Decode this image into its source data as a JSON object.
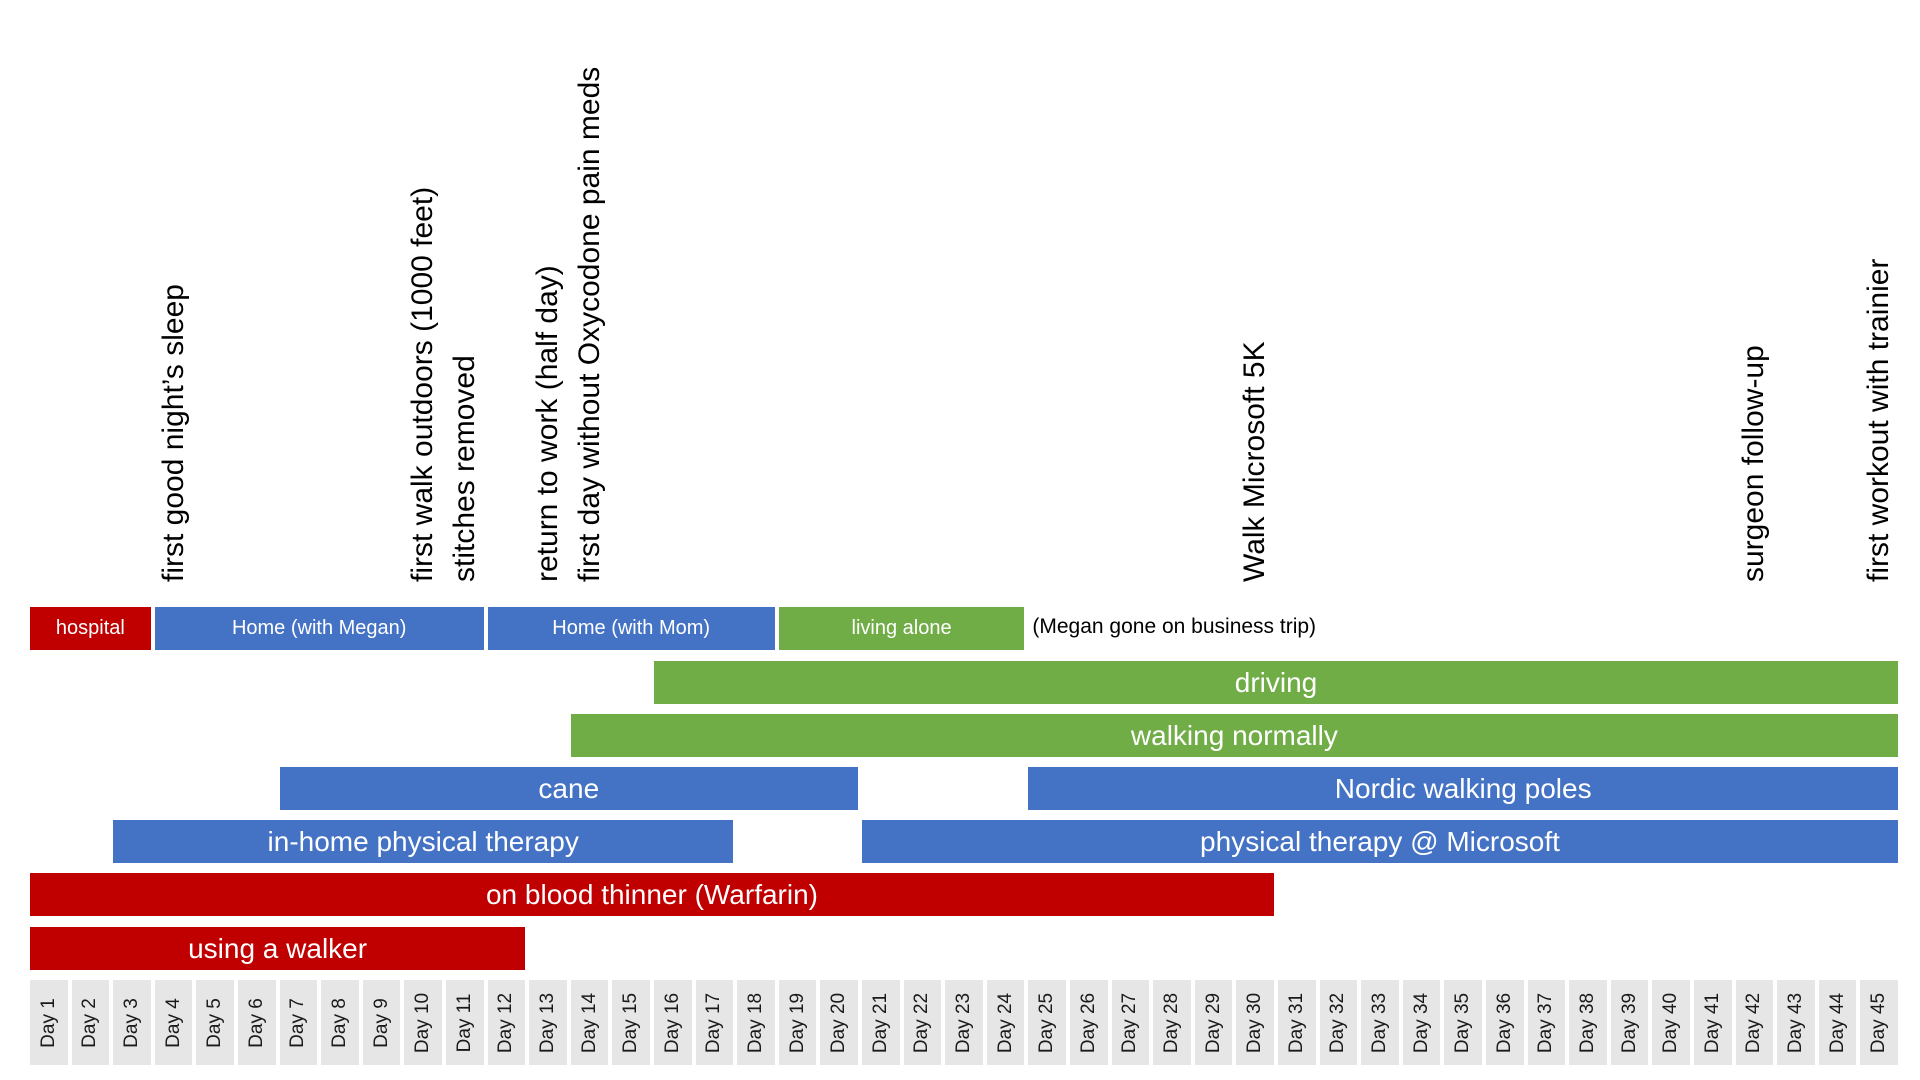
{
  "colors": {
    "red": "#c00000",
    "blue": "#4472c4",
    "green": "#70ad47",
    "day_cell": "#e7e6e6"
  },
  "days": [
    "Day 1",
    "Day 2",
    "Day 3",
    "Day 4",
    "Day 5",
    "Day 6",
    "Day 7",
    "Day 8",
    "Day 9",
    "Day 10",
    "Day 11",
    "Day 12",
    "Day 13",
    "Day 14",
    "Day 15",
    "Day 16",
    "Day 17",
    "Day 18",
    "Day 19",
    "Day 20",
    "Day 21",
    "Day 22",
    "Day 23",
    "Day 24",
    "Day 25",
    "Day 26",
    "Day 27",
    "Day 28",
    "Day 29",
    "Day 30",
    "Day 31",
    "Day 32",
    "Day 33",
    "Day 34",
    "Day 35",
    "Day 36",
    "Day 37",
    "Day 38",
    "Day 39",
    "Day 40",
    "Day 41",
    "Day 42",
    "Day 43",
    "Day 44",
    "Day 45"
  ],
  "living": [
    {
      "label": "hospital",
      "color": "red",
      "start_day": 1,
      "end_day": 3
    },
    {
      "label": "Home (with Megan)",
      "color": "blue",
      "start_day": 4,
      "end_day": 11
    },
    {
      "label": "Home (with Mom)",
      "color": "blue",
      "start_day": 12,
      "end_day": 18
    },
    {
      "label": "living alone",
      "color": "green",
      "start_day": 19,
      "end_day": 24
    }
  ],
  "living_note": "(Megan gone on business trip)",
  "activities": [
    {
      "label": "driving",
      "color": "green",
      "start_day": 16,
      "end_day": 45
    },
    {
      "label": "walking normally",
      "color": "green",
      "start_day": 14,
      "end_day": 45
    },
    {
      "label": "cane",
      "color": "blue",
      "start_day": 7,
      "end_day": 20
    },
    {
      "label": "Nordic walking poles",
      "color": "blue",
      "start_day": 25,
      "end_day": 45
    },
    {
      "label": "in-home physical therapy",
      "color": "blue",
      "start_day": 3,
      "end_day": 17
    },
    {
      "label": "physical therapy @ Microsoft",
      "color": "blue",
      "start_day": 21,
      "end_day": 45
    },
    {
      "label": "on blood thinner (Warfarin)",
      "color": "red",
      "start_day": 1,
      "end_day": 30
    },
    {
      "label": "using a walker",
      "color": "red",
      "start_day": 1,
      "end_day": 12
    }
  ],
  "milestones": [
    {
      "day": 4,
      "text": "first good night’s sleep"
    },
    {
      "day": 10,
      "text": "first walk outdoors (1000 feet)"
    },
    {
      "day": 11,
      "text": "stitches removed"
    },
    {
      "day": 13,
      "text": "return to work (half day)"
    },
    {
      "day": 14,
      "text": "first day without Oxycodone pain meds"
    },
    {
      "day": 30,
      "text": "Walk Microsoft 5K"
    },
    {
      "day": 42,
      "text": "surgeon follow-up"
    },
    {
      "day": 45,
      "text": "first workout with trainier"
    }
  ]
}
